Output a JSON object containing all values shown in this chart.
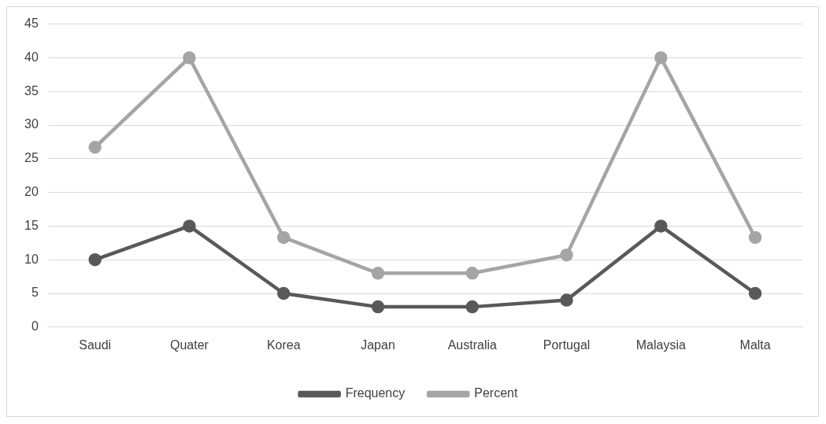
{
  "chart_data": {
    "type": "line",
    "categories": [
      "Saudi",
      "Quater",
      "Korea",
      "Japan",
      "Australia",
      "Portugal",
      "Malaysia",
      "Malta"
    ],
    "series": [
      {
        "name": "Frequency",
        "color": "#595959",
        "values": [
          10,
          15,
          5,
          3,
          3,
          4,
          15,
          5
        ]
      },
      {
        "name": "Percent",
        "color": "#a5a5a5",
        "values": [
          26.7,
          40,
          13.3,
          8,
          8,
          10.7,
          40,
          13.3
        ]
      }
    ],
    "ylim": [
      0,
      45
    ],
    "yticks": [
      0,
      5,
      10,
      15,
      20,
      25,
      30,
      35,
      40,
      45
    ],
    "grid": "y",
    "legend": "bottom",
    "marker": "circle",
    "line_style": "solid"
  }
}
